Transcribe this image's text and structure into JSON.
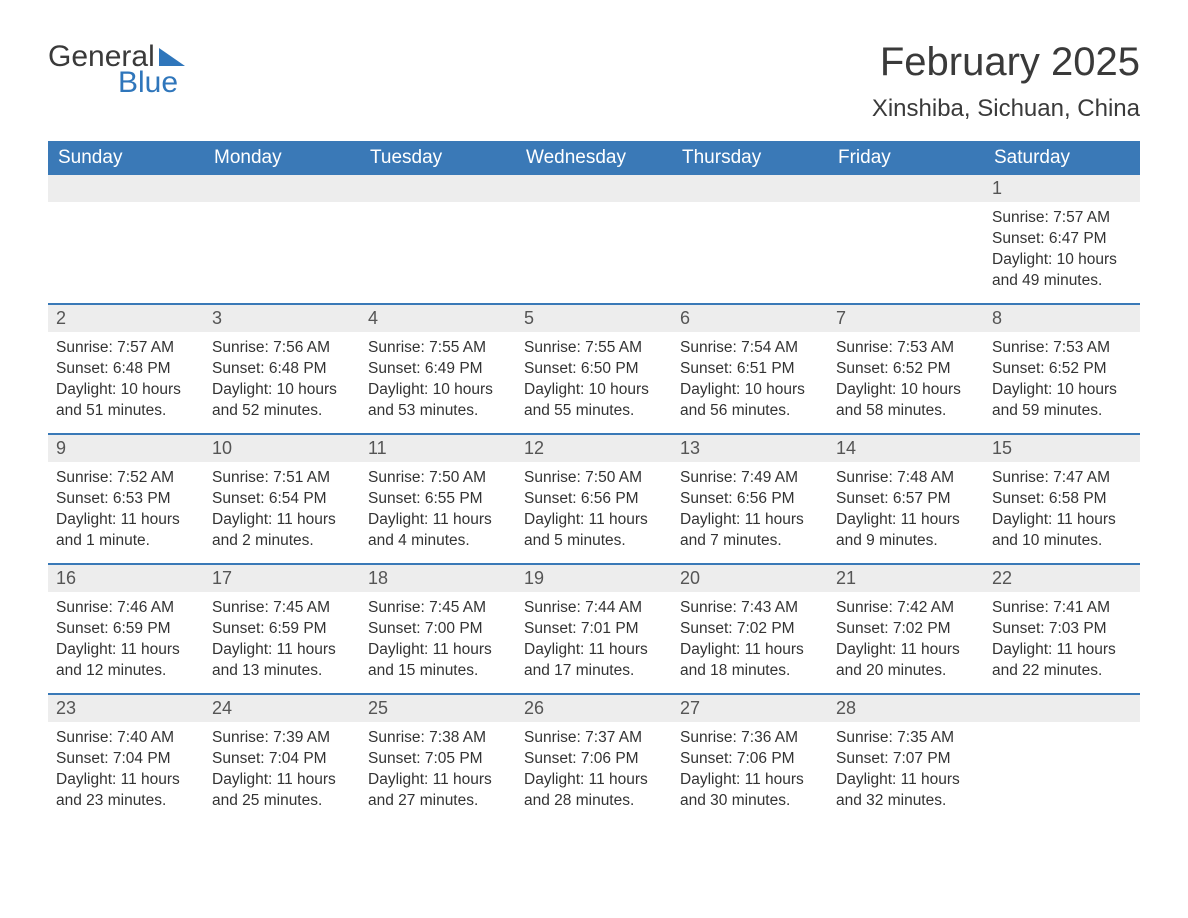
{
  "logo": {
    "text1": "General",
    "text2": "Blue"
  },
  "title": "February 2025",
  "location": "Xinshiba, Sichuan, China",
  "colors": {
    "header_bg": "#3a79b7",
    "header_text": "#ffffff",
    "daynum_bg": "#ededed",
    "border": "#3a79b7",
    "body_bg": "#ffffff",
    "text": "#333333",
    "logo_blue": "#2f76bb"
  },
  "weekdays": [
    "Sunday",
    "Monday",
    "Tuesday",
    "Wednesday",
    "Thursday",
    "Friday",
    "Saturday"
  ],
  "weeks": [
    [
      {
        "day": "",
        "sunrise": "",
        "sunset": "",
        "daylight": ""
      },
      {
        "day": "",
        "sunrise": "",
        "sunset": "",
        "daylight": ""
      },
      {
        "day": "",
        "sunrise": "",
        "sunset": "",
        "daylight": ""
      },
      {
        "day": "",
        "sunrise": "",
        "sunset": "",
        "daylight": ""
      },
      {
        "day": "",
        "sunrise": "",
        "sunset": "",
        "daylight": ""
      },
      {
        "day": "",
        "sunrise": "",
        "sunset": "",
        "daylight": ""
      },
      {
        "day": "1",
        "sunrise": "Sunrise: 7:57 AM",
        "sunset": "Sunset: 6:47 PM",
        "daylight": "Daylight: 10 hours and 49 minutes."
      }
    ],
    [
      {
        "day": "2",
        "sunrise": "Sunrise: 7:57 AM",
        "sunset": "Sunset: 6:48 PM",
        "daylight": "Daylight: 10 hours and 51 minutes."
      },
      {
        "day": "3",
        "sunrise": "Sunrise: 7:56 AM",
        "sunset": "Sunset: 6:48 PM",
        "daylight": "Daylight: 10 hours and 52 minutes."
      },
      {
        "day": "4",
        "sunrise": "Sunrise: 7:55 AM",
        "sunset": "Sunset: 6:49 PM",
        "daylight": "Daylight: 10 hours and 53 minutes."
      },
      {
        "day": "5",
        "sunrise": "Sunrise: 7:55 AM",
        "sunset": "Sunset: 6:50 PM",
        "daylight": "Daylight: 10 hours and 55 minutes."
      },
      {
        "day": "6",
        "sunrise": "Sunrise: 7:54 AM",
        "sunset": "Sunset: 6:51 PM",
        "daylight": "Daylight: 10 hours and 56 minutes."
      },
      {
        "day": "7",
        "sunrise": "Sunrise: 7:53 AM",
        "sunset": "Sunset: 6:52 PM",
        "daylight": "Daylight: 10 hours and 58 minutes."
      },
      {
        "day": "8",
        "sunrise": "Sunrise: 7:53 AM",
        "sunset": "Sunset: 6:52 PM",
        "daylight": "Daylight: 10 hours and 59 minutes."
      }
    ],
    [
      {
        "day": "9",
        "sunrise": "Sunrise: 7:52 AM",
        "sunset": "Sunset: 6:53 PM",
        "daylight": "Daylight: 11 hours and 1 minute."
      },
      {
        "day": "10",
        "sunrise": "Sunrise: 7:51 AM",
        "sunset": "Sunset: 6:54 PM",
        "daylight": "Daylight: 11 hours and 2 minutes."
      },
      {
        "day": "11",
        "sunrise": "Sunrise: 7:50 AM",
        "sunset": "Sunset: 6:55 PM",
        "daylight": "Daylight: 11 hours and 4 minutes."
      },
      {
        "day": "12",
        "sunrise": "Sunrise: 7:50 AM",
        "sunset": "Sunset: 6:56 PM",
        "daylight": "Daylight: 11 hours and 5 minutes."
      },
      {
        "day": "13",
        "sunrise": "Sunrise: 7:49 AM",
        "sunset": "Sunset: 6:56 PM",
        "daylight": "Daylight: 11 hours and 7 minutes."
      },
      {
        "day": "14",
        "sunrise": "Sunrise: 7:48 AM",
        "sunset": "Sunset: 6:57 PM",
        "daylight": "Daylight: 11 hours and 9 minutes."
      },
      {
        "day": "15",
        "sunrise": "Sunrise: 7:47 AM",
        "sunset": "Sunset: 6:58 PM",
        "daylight": "Daylight: 11 hours and 10 minutes."
      }
    ],
    [
      {
        "day": "16",
        "sunrise": "Sunrise: 7:46 AM",
        "sunset": "Sunset: 6:59 PM",
        "daylight": "Daylight: 11 hours and 12 minutes."
      },
      {
        "day": "17",
        "sunrise": "Sunrise: 7:45 AM",
        "sunset": "Sunset: 6:59 PM",
        "daylight": "Daylight: 11 hours and 13 minutes."
      },
      {
        "day": "18",
        "sunrise": "Sunrise: 7:45 AM",
        "sunset": "Sunset: 7:00 PM",
        "daylight": "Daylight: 11 hours and 15 minutes."
      },
      {
        "day": "19",
        "sunrise": "Sunrise: 7:44 AM",
        "sunset": "Sunset: 7:01 PM",
        "daylight": "Daylight: 11 hours and 17 minutes."
      },
      {
        "day": "20",
        "sunrise": "Sunrise: 7:43 AM",
        "sunset": "Sunset: 7:02 PM",
        "daylight": "Daylight: 11 hours and 18 minutes."
      },
      {
        "day": "21",
        "sunrise": "Sunrise: 7:42 AM",
        "sunset": "Sunset: 7:02 PM",
        "daylight": "Daylight: 11 hours and 20 minutes."
      },
      {
        "day": "22",
        "sunrise": "Sunrise: 7:41 AM",
        "sunset": "Sunset: 7:03 PM",
        "daylight": "Daylight: 11 hours and 22 minutes."
      }
    ],
    [
      {
        "day": "23",
        "sunrise": "Sunrise: 7:40 AM",
        "sunset": "Sunset: 7:04 PM",
        "daylight": "Daylight: 11 hours and 23 minutes."
      },
      {
        "day": "24",
        "sunrise": "Sunrise: 7:39 AM",
        "sunset": "Sunset: 7:04 PM",
        "daylight": "Daylight: 11 hours and 25 minutes."
      },
      {
        "day": "25",
        "sunrise": "Sunrise: 7:38 AM",
        "sunset": "Sunset: 7:05 PM",
        "daylight": "Daylight: 11 hours and 27 minutes."
      },
      {
        "day": "26",
        "sunrise": "Sunrise: 7:37 AM",
        "sunset": "Sunset: 7:06 PM",
        "daylight": "Daylight: 11 hours and 28 minutes."
      },
      {
        "day": "27",
        "sunrise": "Sunrise: 7:36 AM",
        "sunset": "Sunset: 7:06 PM",
        "daylight": "Daylight: 11 hours and 30 minutes."
      },
      {
        "day": "28",
        "sunrise": "Sunrise: 7:35 AM",
        "sunset": "Sunset: 7:07 PM",
        "daylight": "Daylight: 11 hours and 32 minutes."
      },
      {
        "day": "",
        "sunrise": "",
        "sunset": "",
        "daylight": ""
      }
    ]
  ]
}
